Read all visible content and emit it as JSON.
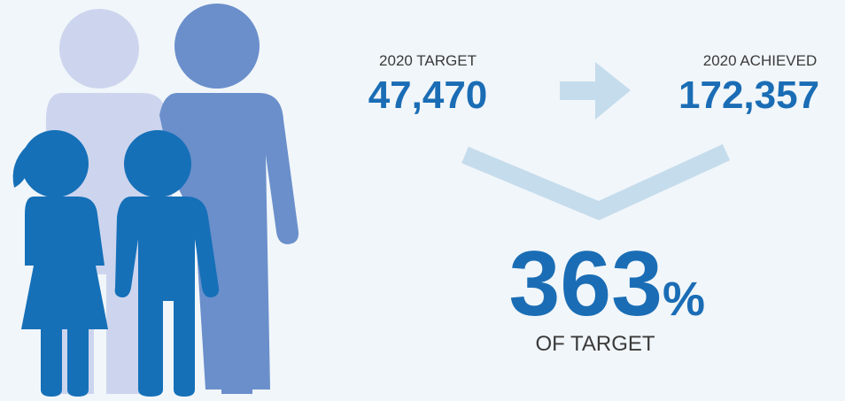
{
  "target": {
    "label": "2020 TARGET",
    "value": "47,470"
  },
  "achieved": {
    "label": "2020 ACHIEVED",
    "value": "172,357"
  },
  "result": {
    "value": "363",
    "unit": "%",
    "caption": "OF TARGET"
  }
}
